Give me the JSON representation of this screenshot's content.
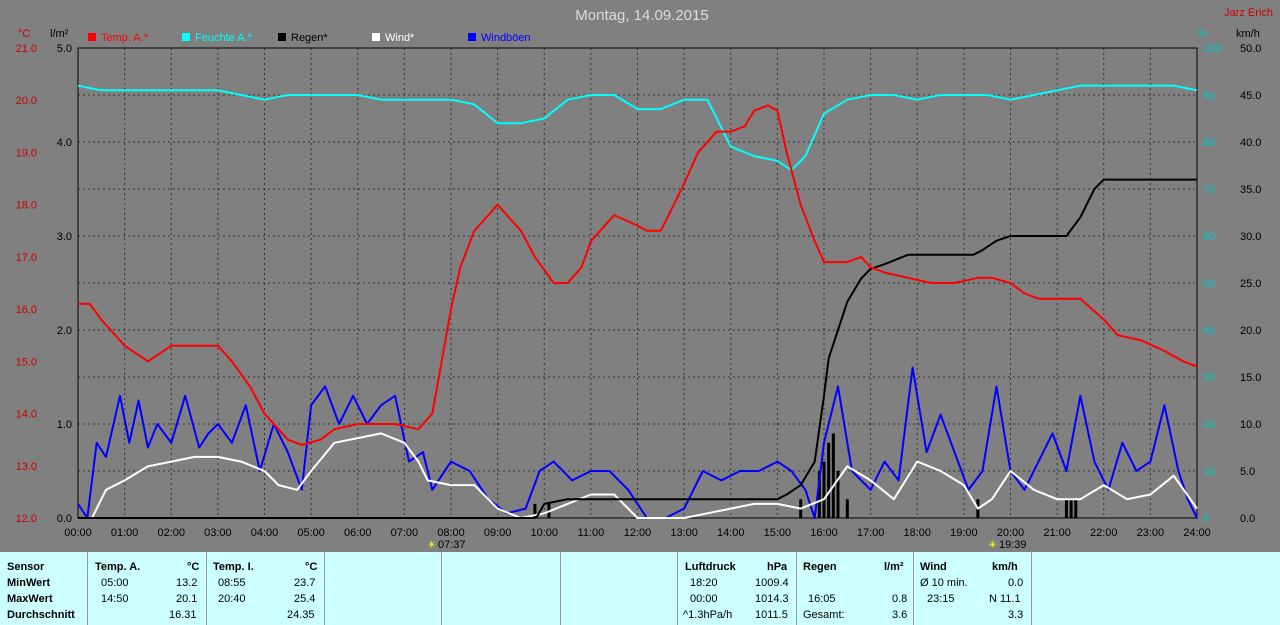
{
  "header": {
    "date_title": "Montag, 14.09.2015",
    "station_name": "Jarz Erich",
    "unit_left_temp": "°C",
    "unit_left_rain": "l/m²",
    "unit_right_humidity": "%",
    "unit_right_wind": "km/h"
  },
  "legend": [
    {
      "label": "Temp. A.*",
      "color": "#ff0000"
    },
    {
      "label": "Feuchte A.*",
      "color": "#00ffff"
    },
    {
      "label": "Regen*",
      "color": "#000000"
    },
    {
      "label": "Wind*",
      "color": "#ffffff"
    },
    {
      "label": "Windböen",
      "color": "#0000ff"
    }
  ],
  "events": {
    "sunrise": "07:37",
    "sunset": "19:39"
  },
  "chart_data": {
    "type": "line",
    "title": "Montag, 14.09.2015",
    "x_ticks": [
      "00:00",
      "01:00",
      "02:00",
      "03:00",
      "04:00",
      "05:00",
      "06:00",
      "07:00",
      "08:00",
      "09:00",
      "10:00",
      "11:00",
      "12:00",
      "13:00",
      "14:00",
      "15:00",
      "16:00",
      "17:00",
      "18:00",
      "19:00",
      "20:00",
      "21:00",
      "22:00",
      "23:00",
      "24:00"
    ],
    "temp_axis": {
      "unit": "°C",
      "range": [
        12,
        21
      ],
      "ticks": [
        "12.0",
        "13.0",
        "14.0",
        "15.0",
        "16.0",
        "17.0",
        "18.0",
        "19.0",
        "20.0",
        "21.0"
      ]
    },
    "rain_axis": {
      "unit": "l/m²",
      "range": [
        0,
        5
      ],
      "ticks": [
        "0.0",
        "1.0",
        "2.0",
        "3.0",
        "4.0",
        "5.0"
      ]
    },
    "humidity_axis": {
      "unit": "%",
      "range": [
        0,
        100
      ],
      "ticks": [
        "0",
        "10",
        "20",
        "30",
        "40",
        "50",
        "60",
        "70",
        "80",
        "90",
        "100"
      ]
    },
    "wind_axis": {
      "unit": "km/h",
      "range": [
        0,
        50
      ],
      "ticks": [
        "0.0",
        "5.0",
        "10.0",
        "15.0",
        "20.0",
        "25.0",
        "30.0",
        "35.0",
        "40.0",
        "45.0",
        "50.0"
      ]
    },
    "grid": true,
    "series": [
      {
        "name": "Temp. A.*",
        "axis": "temp",
        "color": "#ff0000",
        "x": [
          0,
          0.25,
          0.5,
          1,
          1.5,
          2,
          2.5,
          3,
          3.3,
          3.7,
          4,
          4.5,
          4.8,
          5.2,
          5.5,
          6,
          6.3,
          6.8,
          7.3,
          7.6,
          7.8,
          8,
          8.2,
          8.5,
          9,
          9.5,
          9.8,
          10.2,
          10.5,
          10.8,
          11,
          11.5,
          12,
          12.2,
          12.5,
          13,
          13.3,
          13.7,
          14,
          14.3,
          14.5,
          14.8,
          15,
          15.2,
          15.5,
          15.8,
          16,
          16.5,
          16.8,
          17,
          17.3,
          17.8,
          18.3,
          18.8,
          19.3,
          19.6,
          20,
          20.3,
          20.6,
          21,
          21.5,
          22,
          22.3,
          22.8,
          23.3,
          23.7,
          24
        ],
        "y": [
          16.1,
          16.1,
          15.8,
          15.3,
          15.0,
          15.3,
          15.3,
          15.3,
          15.0,
          14.5,
          14.0,
          13.5,
          13.4,
          13.5,
          13.7,
          13.8,
          13.8,
          13.8,
          13.7,
          14.0,
          15.0,
          16.0,
          16.8,
          17.5,
          18.0,
          17.5,
          17.0,
          16.5,
          16.5,
          16.8,
          17.3,
          17.8,
          17.6,
          17.5,
          17.5,
          18.4,
          19.0,
          19.4,
          19.4,
          19.5,
          19.8,
          19.9,
          19.8,
          19.0,
          18.0,
          17.3,
          16.9,
          16.9,
          17.0,
          16.8,
          16.7,
          16.6,
          16.5,
          16.5,
          16.6,
          16.6,
          16.5,
          16.3,
          16.2,
          16.2,
          16.2,
          15.8,
          15.5,
          15.4,
          15.2,
          15.0,
          14.9
        ]
      },
      {
        "name": "Feuchte A.*",
        "axis": "humidity",
        "color": "#00ffff",
        "x": [
          0,
          0.5,
          1,
          1.5,
          2,
          2.5,
          3,
          3.5,
          4,
          4.5,
          5,
          5.5,
          6,
          6.5,
          7,
          7.5,
          8,
          8.5,
          9,
          9.5,
          10,
          10.5,
          11,
          11.5,
          12,
          12.5,
          13,
          13.5,
          14,
          14.5,
          15,
          15.3,
          15.6,
          16,
          16.5,
          17,
          17.5,
          18,
          18.5,
          19,
          19.5,
          20,
          20.5,
          21,
          21.5,
          22,
          22.5,
          23,
          23.5,
          24
        ],
        "y": [
          92,
          91,
          91,
          91,
          91,
          91,
          91,
          90,
          89,
          90,
          90,
          90,
          90,
          89,
          89,
          89,
          89,
          88,
          84,
          84,
          85,
          89,
          90,
          90,
          87,
          87,
          89,
          89,
          79,
          77,
          76,
          74,
          77,
          86,
          89,
          90,
          90,
          89,
          90,
          90,
          90,
          89,
          90,
          91,
          92,
          92,
          92,
          92,
          92,
          91
        ]
      },
      {
        "name": "Regen*",
        "axis": "rain",
        "color": "#000000",
        "x": [
          0,
          9.8,
          9.85,
          10,
          10.5,
          11,
          11.5,
          12,
          13,
          14,
          15,
          15.2,
          15.5,
          15.8,
          16,
          16.1,
          16.3,
          16.5,
          16.8,
          17,
          17.3,
          17.8,
          18.5,
          19.2,
          19.4,
          19.7,
          20,
          20.5,
          21,
          21.2,
          21.5,
          21.8,
          22,
          22.5,
          23,
          23.5,
          24
        ],
        "y": [
          0,
          0,
          0.02,
          0.15,
          0.2,
          0.2,
          0.2,
          0.2,
          0.2,
          0.2,
          0.2,
          0.25,
          0.35,
          0.6,
          1.3,
          1.7,
          2.0,
          2.3,
          2.55,
          2.65,
          2.7,
          2.8,
          2.8,
          2.8,
          2.85,
          2.95,
          3.0,
          3.0,
          3.0,
          3.0,
          3.2,
          3.5,
          3.6,
          3.6,
          3.6,
          3.6,
          3.6
        ]
      },
      {
        "name": "Wind*",
        "axis": "wind",
        "color": "#ffffff",
        "x": [
          0,
          0.3,
          0.6,
          1,
          1.5,
          2,
          2.5,
          3,
          3.5,
          4,
          4.3,
          4.7,
          5,
          5.5,
          6,
          6.5,
          7,
          7.3,
          7.5,
          8,
          8.5,
          9,
          9.5,
          10,
          10.5,
          11,
          11.5,
          12,
          12.5,
          13,
          13.5,
          14,
          14.5,
          15,
          15.5,
          16,
          16.5,
          17,
          17.5,
          18,
          18.5,
          19,
          19.3,
          19.6,
          20,
          20.5,
          21,
          21.5,
          22,
          22.5,
          23,
          23.5,
          24
        ],
        "y": [
          0,
          0,
          3,
          4,
          5.5,
          6,
          6.5,
          6.5,
          6,
          5,
          3.5,
          3,
          5,
          8,
          8.5,
          9,
          8,
          6,
          4,
          3.5,
          3.5,
          1,
          0,
          0.5,
          1.5,
          2.5,
          2.5,
          0,
          0,
          0,
          0.5,
          1,
          1.5,
          1.5,
          1,
          2,
          5.5,
          4,
          2,
          6,
          5,
          3.5,
          1,
          2,
          5,
          3,
          2,
          2,
          3.5,
          2,
          2.5,
          4.5,
          1
        ]
      },
      {
        "name": "Windböen",
        "axis": "wind",
        "color": "#0000ff",
        "x": [
          0,
          0.2,
          0.4,
          0.6,
          0.9,
          1.1,
          1.3,
          1.5,
          1.7,
          2,
          2.3,
          2.6,
          2.8,
          3,
          3.3,
          3.6,
          3.9,
          4.2,
          4.5,
          4.8,
          5,
          5.3,
          5.6,
          5.9,
          6.2,
          6.5,
          6.8,
          7.1,
          7.4,
          7.6,
          8,
          8.4,
          8.8,
          9.2,
          9.6,
          9.9,
          10.2,
          10.6,
          11,
          11.4,
          11.8,
          12.2,
          12.6,
          13,
          13.4,
          13.8,
          14.2,
          14.6,
          15,
          15.3,
          15.6,
          15.8,
          16,
          16.3,
          16.6,
          17,
          17.3,
          17.6,
          17.9,
          18.2,
          18.5,
          18.8,
          19.1,
          19.4,
          19.7,
          20,
          20.3,
          20.6,
          20.9,
          21.2,
          21.5,
          21.8,
          22.1,
          22.4,
          22.7,
          23,
          23.3,
          23.6,
          23.8,
          24
        ],
        "y": [
          1.5,
          0,
          8,
          6.5,
          13,
          8,
          12.5,
          7.5,
          10,
          8,
          13,
          7.5,
          9,
          10,
          8,
          12,
          5,
          10,
          7,
          3,
          12,
          14,
          10,
          13,
          10,
          12,
          13,
          6,
          7,
          3,
          6,
          5,
          2,
          0.5,
          1,
          5,
          6,
          4,
          5,
          5,
          3,
          0,
          0,
          1,
          5,
          4,
          5,
          5,
          6,
          5,
          3,
          0,
          8,
          14,
          5,
          3,
          6,
          4,
          16,
          7,
          11,
          7,
          3,
          5,
          14,
          5,
          3,
          6,
          9,
          5,
          13,
          6,
          3,
          8,
          5,
          6,
          12,
          5,
          2,
          0
        ]
      }
    ],
    "rain_bars": {
      "x": [
        9.8,
        10.1,
        15.5,
        15.9,
        16.0,
        16.1,
        16.2,
        16.3,
        16.5,
        19.3,
        21.2,
        21.3,
        21.4
      ],
      "y": [
        0.15,
        0.15,
        0.2,
        0.5,
        0.6,
        0.8,
        0.9,
        0.5,
        0.2,
        0.2,
        0.2,
        0.2,
        0.2
      ]
    }
  },
  "stats": {
    "sensor": {
      "title": "Sensor",
      "rows": [
        "MinWert",
        "MaxWert",
        "Durchschnitt"
      ]
    },
    "temp_a": {
      "title": "Temp. A.",
      "unit": "°C",
      "times": [
        "05:00",
        "14:50",
        ""
      ],
      "values": [
        "13.2",
        "20.1",
        "16.31"
      ]
    },
    "temp_i": {
      "title": "Temp. I.",
      "unit": "°C",
      "times": [
        "08:55",
        "20:40",
        ""
      ],
      "values": [
        "23.7",
        "25.4",
        "24.35"
      ]
    },
    "pressure": {
      "title": "Luftdruck",
      "unit": "hPa",
      "times": [
        "18:20",
        "00:00",
        "^1.3hPa/h"
      ],
      "values": [
        "1009.4",
        "1014.3",
        "1011.5"
      ]
    },
    "rain": {
      "title": "Regen",
      "unit": "l/m²",
      "times": [
        "",
        "16:05",
        "Gesamt:"
      ],
      "values": [
        "",
        "0.8",
        "3.6"
      ]
    },
    "wind": {
      "title": "Wind",
      "unit": "km/h",
      "times": [
        "Ø 10 min.",
        "23:15",
        ""
      ],
      "values": [
        "0.0",
        "N 11.1",
        "3.3"
      ]
    }
  }
}
